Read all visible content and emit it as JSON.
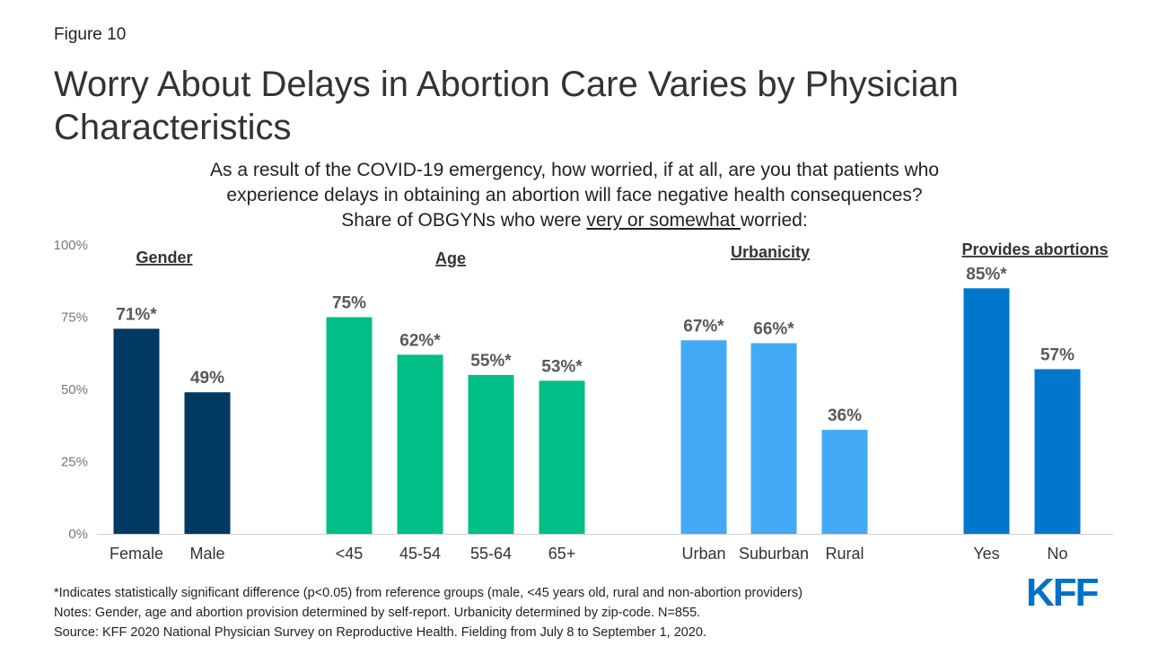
{
  "figure_label": "Figure 10",
  "title": "Worry About Delays in Abortion Care Varies by Physician Characteristics",
  "subtitle": {
    "line1": "As a result of the COVID-19 emergency, how worried, if at all, are you that patients who",
    "line2": "experience delays in obtaining an abortion will face negative health consequences?",
    "line3_before": "Share of OBGYNs who were ",
    "line3_underlined": "very or somewhat ",
    "line3_after": "worried:"
  },
  "chart_data": {
    "type": "bar",
    "ylim": [
      0,
      100
    ],
    "yticks": [
      "0%",
      "25%",
      "50%",
      "75%",
      "100%"
    ],
    "grid": false,
    "groups": [
      {
        "name": "Gender",
        "color": "#003A63",
        "categories": [
          "Female",
          "Male"
        ],
        "values": [
          71,
          49
        ],
        "labels": [
          "71%*",
          "49%"
        ]
      },
      {
        "name": "Age",
        "color": "#00BE86",
        "categories": [
          "<45",
          "45-54",
          "55-64",
          "65+"
        ],
        "values": [
          75,
          62,
          55,
          53
        ],
        "labels": [
          "75%",
          "62%*",
          "55%*",
          "53%*"
        ]
      },
      {
        "name": "Urbanicity",
        "color": "#44AAF5",
        "categories": [
          "Urban",
          "Suburban",
          "Rural"
        ],
        "values": [
          67,
          66,
          36
        ],
        "labels": [
          "67%*",
          "66%*",
          "36%"
        ]
      },
      {
        "name": "Provides abortions",
        "color": "#0077CC",
        "categories": [
          "Yes",
          "No"
        ],
        "values": [
          85,
          57
        ],
        "labels": [
          "85%*",
          "57%"
        ]
      }
    ]
  },
  "footnotes": {
    "line1": "*Indicates statistically significant difference (p<0.05) from reference groups (male, <45 years old, rural and non-abortion providers)",
    "line2": "Notes: Gender, age and abortion provision determined by self-report. Urbanicity determined by zip-code. N=855.",
    "line3": "Source: KFF 2020 National Physician Survey on Reproductive Health. Fielding from July 8 to September 1, 2020."
  },
  "logo_text": "KFF"
}
